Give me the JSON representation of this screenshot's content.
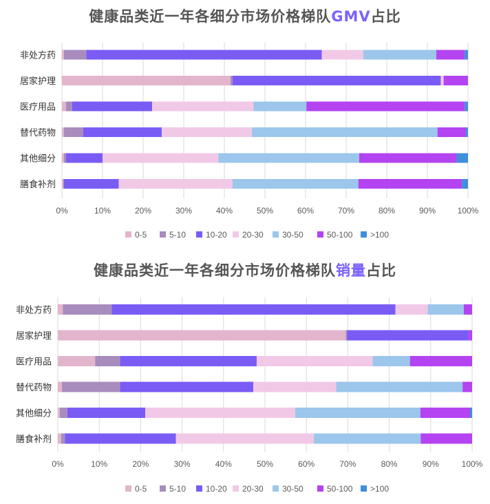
{
  "colors": {
    "0-5": "#e3b5cc",
    "5-10": "#a88cbe",
    "10-20": "#7a5cf5",
    "20-30": "#f1c9e7",
    "30-50": "#9cc6eb",
    "50-100": "#b443f1",
    ">100": "#3f8fd9"
  },
  "chart_data": [
    {
      "type": "bar",
      "orientation": "horizontal",
      "stacked": "100%",
      "title": "健康品类近一年各细分市场价格梯队GMV占比",
      "title_prefix": "健康品类近一年各细分市场价格梯队",
      "title_highlight": "GMV",
      "title_suffix": "占比",
      "categories": [
        "非处方药",
        "居家护理",
        "医疗用品",
        "替代药物",
        "其他细分",
        "膳食补剂"
      ],
      "xlim": [
        0,
        100
      ],
      "x_ticks": [
        "0%",
        "10%",
        "20%",
        "30%",
        "40%",
        "50%",
        "60%",
        "70%",
        "80%",
        "90%",
        "100%"
      ],
      "legend_position": "bottom",
      "series": [
        {
          "name": "0-5",
          "values": [
            0.5,
            41.5,
            1.0,
            0.5,
            0.5,
            0.3
          ]
        },
        {
          "name": "5-10",
          "values": [
            5.5,
            0.5,
            1.5,
            4.7,
            0.5,
            0.2
          ]
        },
        {
          "name": "10-20",
          "values": [
            58.0,
            51.3,
            19.7,
            19.4,
            9.0,
            13.5
          ]
        },
        {
          "name": "20-30",
          "values": [
            10.2,
            0.7,
            25.0,
            22.2,
            28.5,
            28.0
          ]
        },
        {
          "name": "30-50",
          "values": [
            18.0,
            0.0,
            13.0,
            45.7,
            34.7,
            31.0
          ]
        },
        {
          "name": "50-100",
          "values": [
            7.0,
            6.0,
            39.0,
            7.0,
            24.0,
            25.5
          ]
        },
        {
          "name": ">100",
          "values": [
            0.8,
            0.0,
            0.8,
            0.5,
            2.8,
            1.5
          ]
        }
      ]
    },
    {
      "type": "bar",
      "orientation": "horizontal",
      "stacked": "100%",
      "title": "健康品类近一年各细分市场价格梯队销量占比",
      "title_prefix": "健康品类近一年各细分市场价格梯队",
      "title_highlight": "销量",
      "title_suffix": "占比",
      "categories": [
        "非处方药",
        "居家护理",
        "医疗用品",
        "替代药物",
        "其他细分",
        "膳食补剂"
      ],
      "xlim": [
        0,
        100
      ],
      "x_ticks": [
        "0%",
        "10%",
        "20%",
        "30%",
        "40%",
        "50%",
        "60%",
        "70%",
        "80%",
        "90%",
        "100%"
      ],
      "legend_position": "bottom",
      "series": [
        {
          "name": "0-5",
          "values": [
            1.2,
            69.5,
            9.0,
            1.0,
            0.5,
            0.8
          ]
        },
        {
          "name": "5-10",
          "values": [
            11.8,
            0.3,
            6.0,
            14.0,
            1.8,
            0.9
          ]
        },
        {
          "name": "10-20",
          "values": [
            68.5,
            29.4,
            33.0,
            32.2,
            18.8,
            26.8
          ]
        },
        {
          "name": "20-30",
          "values": [
            7.8,
            0.0,
            28.0,
            20.0,
            36.2,
            33.3
          ]
        },
        {
          "name": "30-50",
          "values": [
            8.7,
            0.0,
            9.0,
            30.5,
            30.2,
            25.8
          ]
        },
        {
          "name": "50-100",
          "values": [
            2.0,
            0.8,
            15.0,
            2.3,
            12.0,
            12.4
          ]
        },
        {
          "name": ">100",
          "values": [
            0.0,
            0.0,
            0.0,
            0.0,
            0.5,
            0.0
          ]
        }
      ]
    }
  ]
}
